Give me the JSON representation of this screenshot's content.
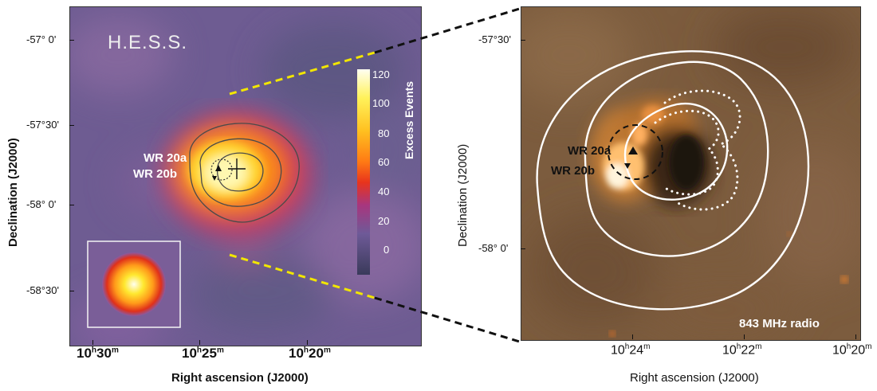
{
  "left_panel": {
    "title": "H.E.S.S.",
    "labels": {
      "wr20a": "WR 20a",
      "wr20b": "WR 20b"
    },
    "colorbar": {
      "title": "Excess Events",
      "ticks": [
        "120",
        "100",
        "80",
        "60",
        "40",
        "20",
        "0"
      ],
      "neg_tick": "–"
    },
    "y_ticks": [
      "-57° 0'",
      "-57°30'",
      "-58° 0'",
      "-58°30'"
    ],
    "x_ticks": [
      {
        "h": "10",
        "ms": "30",
        "m": "m"
      },
      {
        "h": "10",
        "ms": "25",
        "m": "m"
      },
      {
        "h": "10",
        "ms": "20",
        "m": "m"
      }
    ],
    "x_title": "Right ascension (J2000)",
    "y_title": "Declination (J2000)"
  },
  "right_panel": {
    "labels": {
      "wr20a": "WR 20a",
      "wr20b": "WR 20b",
      "radio": "843 MHz radio"
    },
    "y_ticks": [
      "-57°30'",
      "-58° 0'"
    ],
    "x_ticks": [
      {
        "h": "10",
        "ms": "24",
        "m": "m"
      },
      {
        "h": "10",
        "ms": "22",
        "m": "m"
      },
      {
        "h": "10",
        "ms": "20",
        "m": "m"
      }
    ],
    "x_title": "Right ascension (J2000)",
    "y_title": "Declination (J2000)"
  },
  "colors": {
    "zoom_left": "#f2e600",
    "zoom_right": "#111111",
    "map_bg": "#6d5a8c",
    "radio_bg": "#7a5a3c"
  }
}
